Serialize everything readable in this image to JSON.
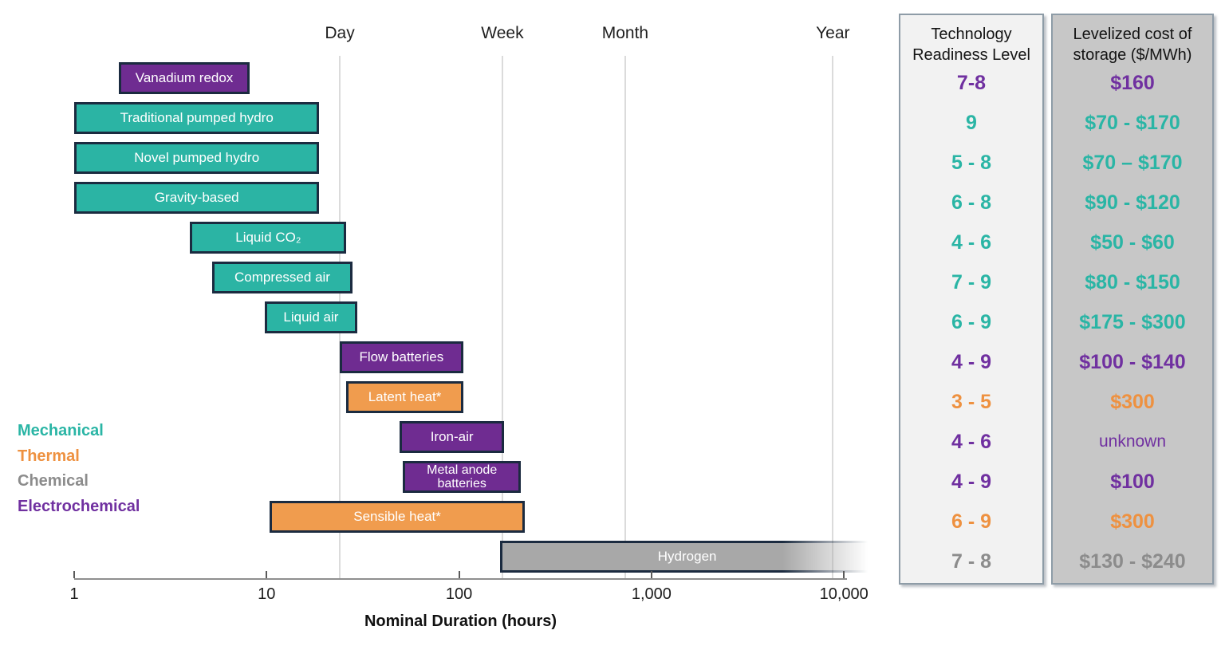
{
  "chart_data": {
    "type": "bar",
    "variant": "horizontal-range-bars-log-x",
    "title": "",
    "xlabel": "Nominal Duration (hours)",
    "ylabel": "",
    "xlim_hours": [
      1,
      14000
    ],
    "grid": "vertical-time-markers-only",
    "x_ticks": [
      {
        "value": 1,
        "label": "1"
      },
      {
        "value": 10,
        "label": "10"
      },
      {
        "value": 100,
        "label": "100"
      },
      {
        "value": 1000,
        "label": "1,000"
      },
      {
        "value": 10000,
        "label": "10,000"
      }
    ],
    "time_markers": [
      {
        "label": "Day",
        "hours": 24
      },
      {
        "label": "Week",
        "hours": 168
      },
      {
        "label": "Month",
        "hours": 730
      },
      {
        "label": "Year",
        "hours": 8760
      }
    ],
    "legend": [
      {
        "label": "Mechanical",
        "category": "mechanical",
        "color": "#2ab5a5"
      },
      {
        "label": "Thermal",
        "category": "thermal",
        "color": "#ee9140"
      },
      {
        "label": "Chemical",
        "category": "chemical",
        "color": "#8c8c8c"
      },
      {
        "label": "Electrochemical",
        "category": "electrochemical",
        "color": "#7030a0"
      }
    ],
    "legend_position": "left-middle",
    "bars": [
      {
        "label": "Vanadium redox",
        "category": "electrochemical",
        "start_hours": 1.7,
        "end_hours": 8.2,
        "trl": "7-8",
        "cost": "$160"
      },
      {
        "label": "Traditional pumped hydro",
        "category": "mechanical",
        "start_hours": 1,
        "end_hours": 18.8,
        "trl": "9",
        "cost": "$70 - $170"
      },
      {
        "label": "Novel pumped hydro",
        "category": "mechanical",
        "start_hours": 1,
        "end_hours": 18.8,
        "trl": "5 - 8",
        "cost": "$70 – $170"
      },
      {
        "label": "Gravity-based",
        "category": "mechanical",
        "start_hours": 1,
        "end_hours": 18.8,
        "trl": "6 - 8",
        "cost": "$90 - $120"
      },
      {
        "label": "Liquid CO₂",
        "category": "mechanical",
        "start_hours": 4,
        "end_hours": 26,
        "trl": "4 - 6",
        "cost": "$50 - $60"
      },
      {
        "label": "Compressed air",
        "category": "mechanical",
        "start_hours": 5.2,
        "end_hours": 28,
        "trl": "7 - 9",
        "cost": "$80 - $150"
      },
      {
        "label": "Liquid air",
        "category": "mechanical",
        "start_hours": 9.8,
        "end_hours": 29.5,
        "trl": "6 - 9",
        "cost": "$175 - $300"
      },
      {
        "label": "Flow batteries",
        "category": "electrochemical",
        "start_hours": 24,
        "end_hours": 105,
        "trl": "4 - 9",
        "cost": "$100 - $140"
      },
      {
        "label": "Latent heat*",
        "category": "thermal",
        "start_hours": 26,
        "end_hours": 105,
        "trl": "3 - 5",
        "cost": "$300"
      },
      {
        "label": "Iron-air",
        "category": "electrochemical",
        "start_hours": 49,
        "end_hours": 172,
        "trl": "4 - 6",
        "cost": "unknown"
      },
      {
        "label": "Metal anode batteries",
        "category": "electrochemical",
        "start_hours": 51,
        "end_hours": 210,
        "trl": "4 - 9",
        "cost": "$100"
      },
      {
        "label": "Sensible heat*",
        "category": "thermal",
        "start_hours": 10.4,
        "end_hours": 219,
        "trl": "6 - 9",
        "cost": "$300"
      },
      {
        "label": "Hydrogen",
        "category": "chemical",
        "start_hours": 163,
        "end_hours": 14000,
        "trl": "7 - 8",
        "cost": "$130 - $240",
        "fade_right": true
      }
    ]
  },
  "panels": {
    "trl_header": "Technology Readiness Level",
    "cost_header": "Levelized cost of storage ($/MWh)"
  },
  "colors": {
    "mechanical": "#2bb4a4",
    "thermal": "#f09c4e",
    "chemical": "#a8a8a8",
    "electrochemical": "#6f2c91",
    "bar_border": "#1b2b40",
    "gridline": "#dbdbdb",
    "trl_panel_bg": "#f2f2f2",
    "cost_panel_bg": "#c7c7c7"
  }
}
